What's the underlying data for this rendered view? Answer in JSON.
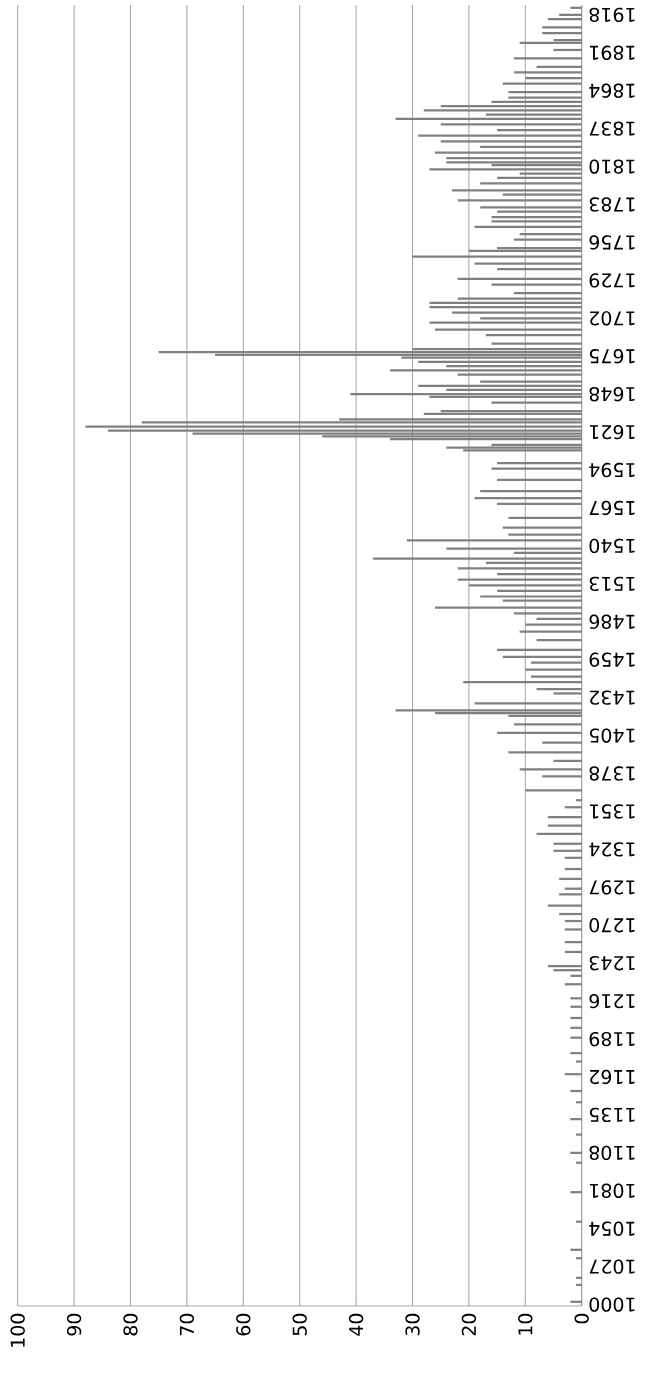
{
  "chart_data": {
    "type": "bar",
    "orientation": "horizontal",
    "color": "#808080",
    "grid": "x",
    "xlim": [
      100,
      0
    ],
    "xticks": [
      0,
      10,
      20,
      30,
      40,
      50,
      60,
      70,
      80,
      90,
      100
    ],
    "ylim": [
      999,
      1925
    ],
    "yticks": [
      1000,
      1027,
      1054,
      1081,
      1108,
      1135,
      1162,
      1189,
      1216,
      1243,
      1270,
      1297,
      1324,
      1351,
      1378,
      1405,
      1432,
      1459,
      1486,
      1513,
      1540,
      1567,
      1594,
      1621,
      1648,
      1675,
      1702,
      1729,
      1756,
      1783,
      1810,
      1837,
      1864,
      1891,
      1918
    ],
    "x": [
      1002,
      1014,
      1019,
      1033,
      1039,
      1059,
      1080,
      1101,
      1108,
      1121,
      1132,
      1144,
      1152,
      1164,
      1173,
      1179,
      1190,
      1197,
      1204,
      1212,
      1218,
      1228,
      1234,
      1238,
      1241,
      1251,
      1258,
      1267,
      1273,
      1278,
      1284,
      1292,
      1296,
      1303,
      1310,
      1318,
      1323,
      1328,
      1335,
      1341,
      1347,
      1354,
      1359,
      1366,
      1376,
      1381,
      1387,
      1393,
      1400,
      1407,
      1413,
      1419,
      1421,
      1423,
      1428,
      1435,
      1438,
      1443,
      1447,
      1452,
      1457,
      1461,
      1466,
      1473,
      1479,
      1484,
      1488,
      1492,
      1496,
      1501,
      1504,
      1508,
      1512,
      1516,
      1520,
      1524,
      1528,
      1531,
      1535,
      1538,
      1544,
      1548,
      1553,
      1560,
      1570,
      1574,
      1579,
      1587,
      1595,
      1599,
      1608,
      1610,
      1612,
      1616,
      1618,
      1620,
      1622,
      1625,
      1628,
      1630,
      1634,
      1636,
      1642,
      1646,
      1648,
      1651,
      1654,
      1657,
      1662,
      1665,
      1668,
      1671,
      1674,
      1676,
      1678,
      1680,
      1684,
      1690,
      1694,
      1699,
      1702,
      1706,
      1710,
      1713,
      1716,
      1720,
      1726,
      1730,
      1737,
      1741,
      1746,
      1750,
      1752,
      1758,
      1762,
      1767,
      1771,
      1774,
      1778,
      1781,
      1786,
      1790,
      1793,
      1798,
      1802,
      1805,
      1808,
      1811,
      1813,
      1816,
      1820,
      1824,
      1828,
      1832,
      1836,
      1840,
      1844,
      1847,
      1850,
      1853,
      1856,
      1859,
      1863,
      1869,
      1873,
      1877,
      1881,
      1887,
      1893,
      1898,
      1900,
      1905,
      1909,
      1915,
      1918,
      1923
    ],
    "values": [
      2,
      1,
      1,
      1,
      2,
      1,
      2,
      1,
      2,
      1,
      2,
      1,
      2,
      3,
      1,
      2,
      2,
      2,
      2,
      2,
      2,
      3,
      2,
      5,
      6,
      3,
      3,
      3,
      3,
      4,
      6,
      4,
      3,
      4,
      3,
      3,
      5,
      5,
      8,
      6,
      6,
      3,
      1,
      10,
      7,
      11,
      5,
      13,
      7,
      15,
      12,
      13,
      26,
      33,
      19,
      5,
      8,
      21,
      9,
      10,
      9,
      14,
      15,
      8,
      11,
      10,
      8,
      12,
      26,
      14,
      18,
      15,
      20,
      22,
      15,
      22,
      17,
      37,
      12,
      24,
      31,
      13,
      14,
      13,
      15,
      19,
      18,
      15,
      16,
      15,
      21,
      24,
      16,
      34,
      46,
      69,
      84,
      88,
      78,
      43,
      28,
      25,
      16,
      27,
      41,
      24,
      29,
      18,
      22,
      34,
      24,
      29,
      32,
      65,
      75,
      30,
      16,
      17,
      26,
      27,
      18,
      23,
      27,
      27,
      22,
      12,
      16,
      22,
      15,
      19,
      30,
      20,
      15,
      12,
      11,
      19,
      16,
      16,
      15,
      18,
      22,
      14,
      23,
      18,
      15,
      11,
      27,
      16,
      24,
      24,
      26,
      18,
      25,
      29,
      15,
      25,
      33,
      17,
      28,
      25,
      16,
      13,
      13,
      14,
      10,
      12,
      8,
      12,
      5,
      11,
      5,
      7,
      7,
      6,
      4,
      2
    ]
  }
}
